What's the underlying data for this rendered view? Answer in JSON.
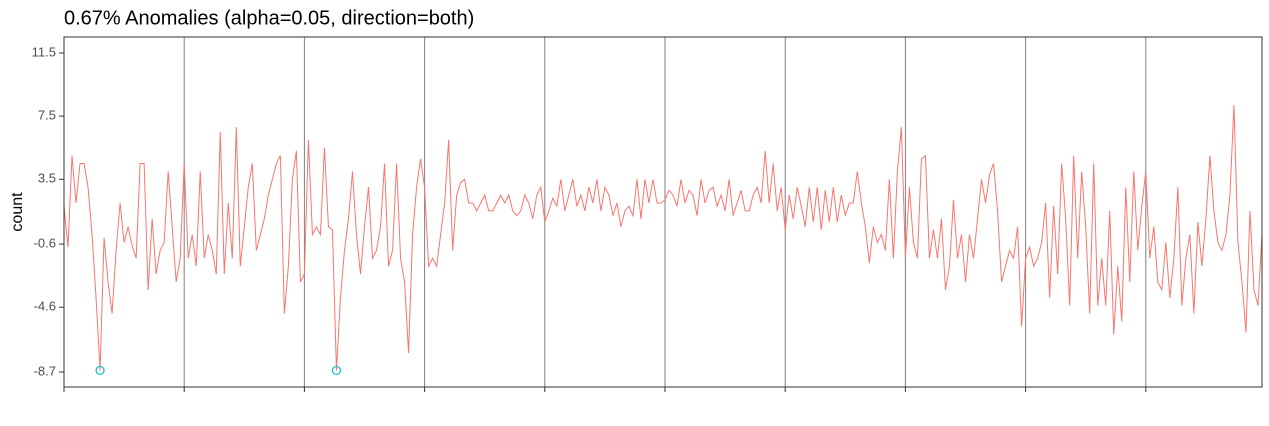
{
  "chart_data": {
    "type": "line",
    "title": "0.67% Anomalies (alpha=0.05, direction=both)",
    "y_label": "count",
    "x": [
      1,
      2,
      3,
      4,
      5,
      6,
      7,
      8,
      9,
      10,
      11,
      12,
      13,
      14,
      15,
      16,
      17,
      18,
      19,
      20,
      21,
      22,
      23,
      24,
      25,
      26,
      27,
      28,
      29,
      30,
      31,
      32,
      33,
      34,
      35,
      36,
      37,
      38,
      39,
      40,
      41,
      42,
      43,
      44,
      45,
      46,
      47,
      48,
      49,
      50,
      51,
      52,
      53,
      54,
      55,
      56,
      57,
      58,
      59,
      60,
      61,
      62,
      63,
      64,
      65,
      66,
      67,
      68,
      69,
      70,
      71,
      72,
      73,
      74,
      75,
      76,
      77,
      78,
      79,
      80,
      81,
      82,
      83,
      84,
      85,
      86,
      87,
      88,
      89,
      90,
      91,
      92,
      93,
      94,
      95,
      96,
      97,
      98,
      99,
      100,
      101,
      102,
      103,
      104,
      105,
      106,
      107,
      108,
      109,
      110,
      111,
      112,
      113,
      114,
      115,
      116,
      117,
      118,
      119,
      120,
      121,
      122,
      123,
      124,
      125,
      126,
      127,
      128,
      129,
      130,
      131,
      132,
      133,
      134,
      135,
      136,
      137,
      138,
      139,
      140,
      141,
      142,
      143,
      144,
      145,
      146,
      147,
      148,
      149,
      150,
      151,
      152,
      153,
      154,
      155,
      156,
      157,
      158,
      159,
      160,
      161,
      162,
      163,
      164,
      165,
      166,
      167,
      168,
      169,
      170,
      171,
      172,
      173,
      174,
      175,
      176,
      177,
      178,
      179,
      180,
      181,
      182,
      183,
      184,
      185,
      186,
      187,
      188,
      189,
      190,
      191,
      192,
      193,
      194,
      195,
      196,
      197,
      198,
      199,
      200,
      201,
      202,
      203,
      204,
      205,
      206,
      207,
      208,
      209,
      210,
      211,
      212,
      213,
      214,
      215,
      216,
      217,
      218,
      219,
      220,
      221,
      222,
      223,
      224,
      225,
      226,
      227,
      228,
      229,
      230,
      231,
      232,
      233,
      234,
      235,
      236,
      237,
      238,
      239,
      240,
      241,
      242,
      243,
      244,
      245,
      246,
      247,
      248,
      249,
      250,
      251,
      252,
      253,
      254,
      255,
      256,
      257,
      258,
      259,
      260,
      261,
      262,
      263,
      264,
      265,
      266,
      267,
      268,
      269,
      270,
      271,
      272,
      273,
      274,
      275,
      276,
      277,
      278,
      279,
      280,
      281,
      282,
      283,
      284,
      285,
      286,
      287,
      288,
      289,
      290,
      291,
      292,
      293,
      294,
      295,
      296,
      297,
      298,
      299,
      300
    ],
    "series": [
      {
        "color": "#F8766D",
        "values": [
          1.8,
          -0.8,
          5,
          2,
          4.5,
          4.5,
          3,
          0,
          -4,
          -8.6,
          -0.2,
          -3,
          -5,
          -1,
          2,
          -0.5,
          0.5,
          -0.7,
          -1.5,
          4.5,
          4.5,
          -3.5,
          1,
          -2.5,
          -1,
          -0.5,
          4,
          0.5,
          -3,
          -1.5,
          4.5,
          -1.5,
          0,
          -2,
          4,
          -1.5,
          0,
          -1,
          -2.5,
          6.5,
          -2.5,
          2,
          -1.5,
          6.8,
          -2,
          0.5,
          3,
          4.5,
          -1,
          0,
          1,
          2.5,
          3.5,
          4.5,
          5,
          -5,
          -2,
          3.5,
          5.3,
          -3,
          -2.5,
          6,
          0,
          0.5,
          0,
          5.5,
          0.5,
          0.3,
          -8.6,
          -4,
          -1,
          1,
          4,
          0,
          -2.5,
          0.5,
          3,
          -1.5,
          -1,
          0.5,
          4.5,
          -2,
          -1,
          4.5,
          -1.5,
          -3,
          -7.5,
          0,
          3,
          4.8,
          3,
          -2,
          -1.5,
          -2,
          0,
          2,
          6,
          -1,
          2.5,
          3.3,
          3.5,
          2,
          2,
          1.5,
          2,
          2.5,
          1.5,
          1.5,
          2,
          2.5,
          2,
          2.5,
          1.5,
          1.2,
          1.5,
          2.5,
          2,
          1,
          2.5,
          3,
          0.8,
          1.5,
          2.3,
          1.8,
          3.5,
          1.5,
          2.5,
          3.5,
          1.8,
          2.5,
          1.5,
          3,
          2,
          3.5,
          1.5,
          3,
          2.5,
          1.2,
          2,
          0.5,
          1.5,
          1.8,
          1.2,
          3.5,
          1,
          3.5,
          2,
          3.5,
          2,
          2,
          2.2,
          2.8,
          2.5,
          1.8,
          3.5,
          2,
          2.8,
          2.5,
          1.2,
          3.5,
          2,
          2.8,
          3,
          1.8,
          2.5,
          1.5,
          3.5,
          1.2,
          2,
          2.8,
          1.5,
          1.5,
          2.5,
          3,
          2,
          5.3,
          2,
          4.5,
          1.5,
          3,
          0.3,
          2.5,
          1,
          3,
          1.8,
          0.5,
          3,
          0.8,
          3,
          0.3,
          2.8,
          0.8,
          3,
          0.8,
          2.5,
          1.2,
          2,
          2,
          4,
          2,
          0.5,
          -1.8,
          0.5,
          -0.5,
          0,
          -1,
          3.5,
          -1.5,
          4,
          6.8,
          -1.5,
          3,
          -0.5,
          -1.5,
          4.8,
          5,
          -1.5,
          0.3,
          -1.5,
          1,
          -3.5,
          -2,
          2.2,
          -1.5,
          0,
          -3,
          0,
          -1.5,
          1,
          3.5,
          2,
          3.8,
          4.5,
          1.5,
          -3,
          -2,
          -1,
          -1.5,
          0.5,
          -5.8,
          -1.5,
          -0.8,
          -2,
          -1.5,
          -0.5,
          2,
          -4,
          1.8,
          -2.5,
          4.5,
          1,
          -4.5,
          5,
          -1.5,
          4,
          0.5,
          -5,
          4.5,
          -4.5,
          -1.5,
          -4.5,
          1.5,
          -6.3,
          -2,
          -5.5,
          3,
          -3,
          4,
          -1,
          1.8,
          4,
          -1.5,
          0.5,
          -3,
          -3.5,
          -0.5,
          -4,
          -1.5,
          3,
          -4.5,
          -1.5,
          0,
          -5,
          0.8,
          -2,
          1,
          5,
          1.5,
          -0.5,
          -1,
          0,
          2.5,
          8.2,
          -0.5,
          -3,
          -6.2,
          1.5,
          -3.5,
          -4.5,
          0
        ]
      }
    ],
    "anomalies": {
      "color": "#00BFC4",
      "x": [
        10,
        69
      ],
      "values": [
        -8.6,
        -8.6
      ]
    },
    "xlim": [
      1,
      300
    ],
    "xticks": [
      1,
      31,
      61,
      91,
      121,
      151,
      181,
      211,
      241,
      271
    ],
    "ylim": [
      -9.65,
      12.51
    ],
    "yticks": [
      11.5,
      7.5,
      3.5,
      -0.6,
      -4.6,
      -8.7
    ],
    "grid": "vertical"
  }
}
